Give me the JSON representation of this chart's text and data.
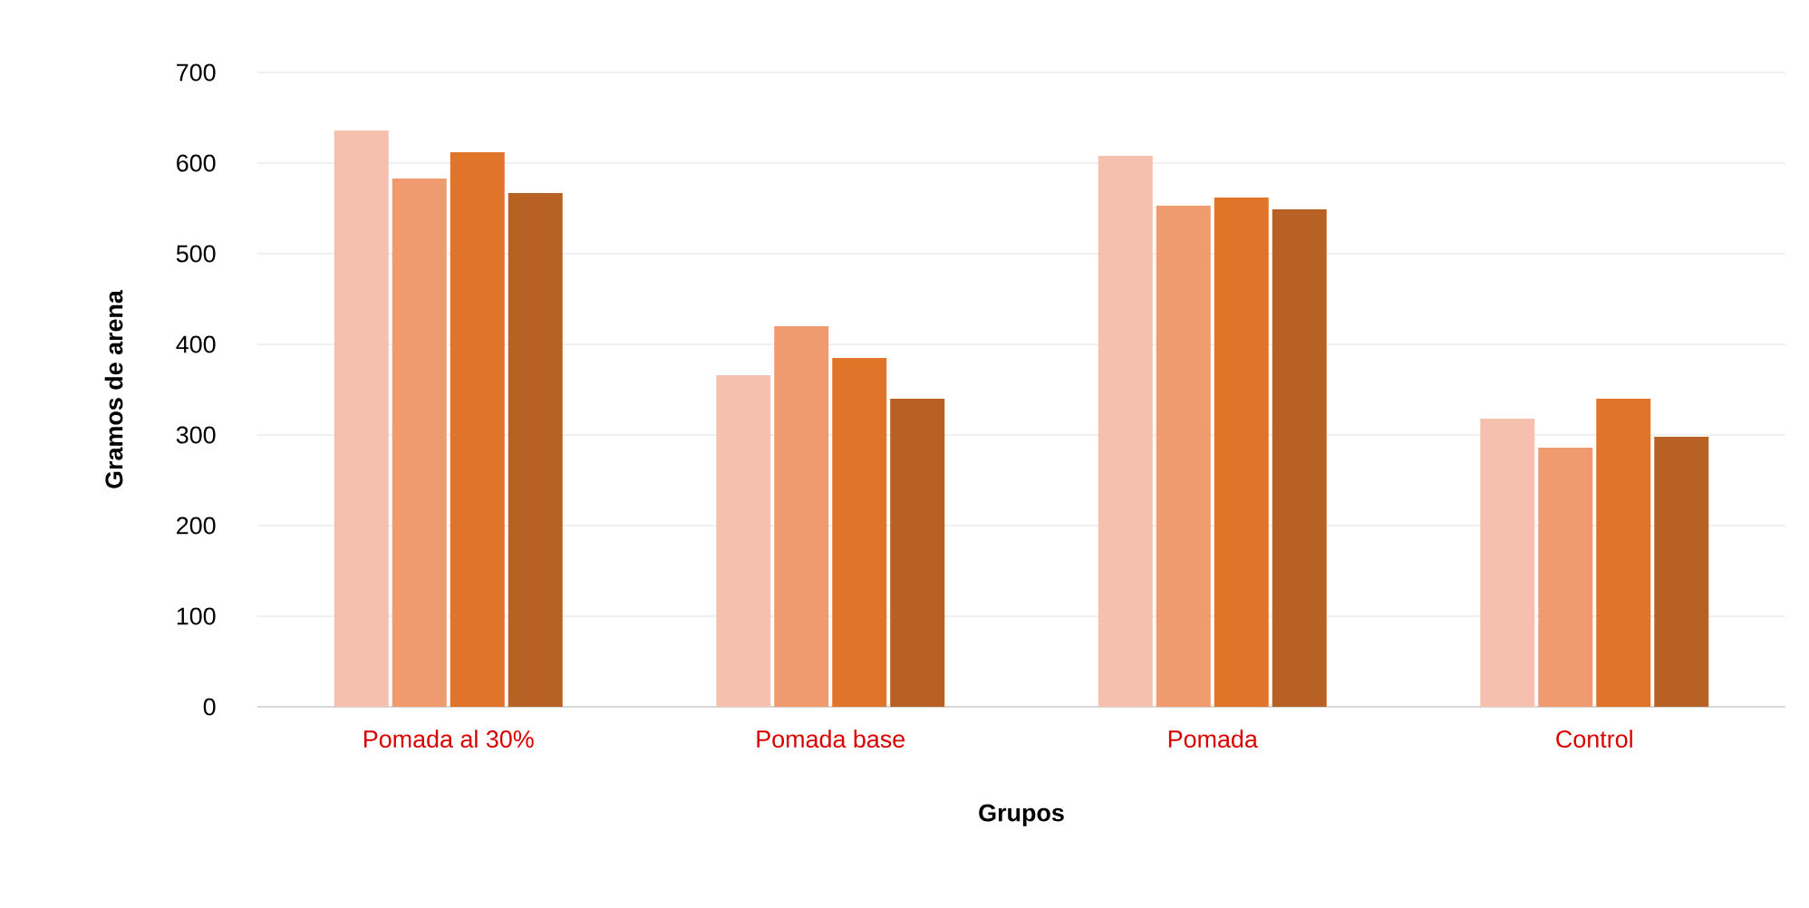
{
  "chart_data": {
    "type": "bar",
    "xlabel": "Grupos",
    "ylabel": "Gramos de arena",
    "categories": [
      "Pomada al 30%",
      "Pomada base",
      "Pomada",
      "Control"
    ],
    "series": [
      {
        "color": "#f5c0ae",
        "values": [
          636,
          366,
          608,
          318
        ]
      },
      {
        "color": "#f09a6f",
        "values": [
          583,
          420,
          553,
          286
        ]
      },
      {
        "color": "#e07428",
        "values": [
          612,
          385,
          562,
          340
        ]
      },
      {
        "color": "#b86125",
        "values": [
          567,
          340,
          549,
          298
        ]
      }
    ],
    "ylim": [
      0,
      700
    ],
    "yticks": [
      0,
      100,
      200,
      300,
      400,
      500,
      600,
      700
    ],
    "grid": "y"
  }
}
